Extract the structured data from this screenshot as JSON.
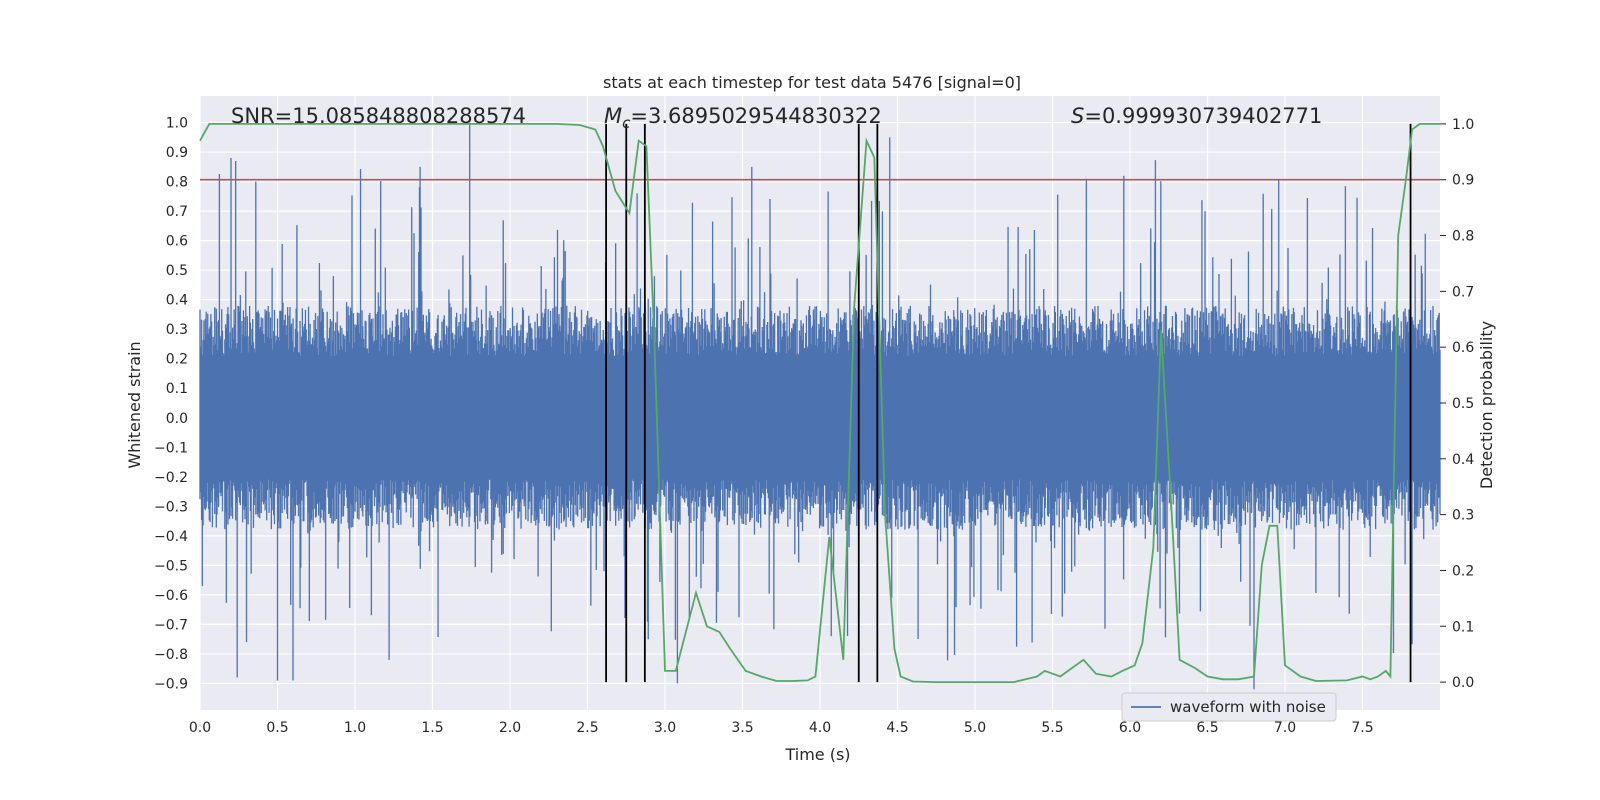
{
  "chart_data": {
    "type": "line",
    "title": "stats at each timestep for test data 5476 [signal=0]",
    "xlabel": "Time (s)",
    "ylabel_left": "Whitened strain",
    "ylabel_right": "Detection probability",
    "xlim": [
      0.0,
      8.0
    ],
    "ylim_left": [
      -0.99,
      1.09
    ],
    "ylim_right": [
      -0.05,
      1.05
    ],
    "x_ticks": [
      "0.0",
      "0.5",
      "1.0",
      "1.5",
      "2.0",
      "2.5",
      "3.0",
      "3.5",
      "4.0",
      "4.5",
      "5.0",
      "5.5",
      "6.0",
      "6.5",
      "7.0",
      "7.5"
    ],
    "y_left_ticks": [
      "1.0",
      "0.9",
      "0.8",
      "0.7",
      "0.6",
      "0.5",
      "0.4",
      "0.3",
      "0.2",
      "0.1",
      "0.0",
      "−0.1",
      "−0.2",
      "−0.3",
      "−0.4",
      "−0.5",
      "−0.6",
      "−0.7",
      "−0.8",
      "−0.9"
    ],
    "y_right_ticks": [
      "1.0",
      "0.9",
      "0.8",
      "0.7",
      "0.6",
      "0.5",
      "0.4",
      "0.3",
      "0.2",
      "0.1",
      "0.0"
    ],
    "annotations": {
      "snr": "SNR=15.085848808288574",
      "mc_symbol": "M",
      "mc_subscript": "c",
      "mc_value": "=3.6895029544830322",
      "s_symbol": "S",
      "s_value": "=0.999930739402771"
    },
    "threshold": {
      "value": 0.9,
      "axis": "right",
      "color": "#c44e52"
    },
    "vertical_markers_x": [
      2.62,
      2.75,
      2.87,
      4.25,
      4.37,
      7.81
    ],
    "grid": true,
    "background": "#eaeaf2",
    "legend": {
      "position": "lower-right",
      "entries": [
        "waveform with noise"
      ]
    },
    "series": [
      {
        "name": "waveform with noise",
        "axis": "left",
        "color": "#4c72b0",
        "kind": "noise",
        "samples": 1600,
        "envelope_abs": 0.38,
        "peak_max": 1.0,
        "peak_min": -0.93,
        "notable_peaks": [
          [
            0.2,
            0.88
          ],
          [
            0.23,
            0.87
          ],
          [
            0.36,
            0.8
          ],
          [
            1.42,
            0.85
          ],
          [
            1.74,
            1.0
          ],
          [
            2.82,
            0.76
          ],
          [
            3.56,
            0.85
          ],
          [
            4.45,
            0.95
          ],
          [
            5.96,
            0.82
          ],
          [
            0.24,
            -0.88
          ],
          [
            0.5,
            -0.89
          ],
          [
            0.6,
            -0.89
          ],
          [
            1.22,
            -0.82
          ],
          [
            3.08,
            -0.9
          ],
          [
            6.8,
            -0.92
          ]
        ]
      },
      {
        "axis": "right",
        "color": "#55a868",
        "x": [
          0.0,
          0.06,
          0.2,
          0.5,
          1.0,
          1.5,
          2.0,
          2.3,
          2.45,
          2.55,
          2.6,
          2.68,
          2.77,
          2.83,
          2.88,
          2.93,
          3.0,
          3.07,
          3.2,
          3.27,
          3.35,
          3.42,
          3.52,
          3.62,
          3.72,
          3.82,
          3.92,
          3.97,
          4.06,
          4.15,
          4.22,
          4.3,
          4.35,
          4.42,
          4.48,
          4.52,
          4.6,
          4.75,
          5.0,
          5.25,
          5.4,
          5.45,
          5.55,
          5.6,
          5.7,
          5.78,
          5.88,
          5.95,
          6.03,
          6.08,
          6.15,
          6.2,
          6.27,
          6.32,
          6.42,
          6.5,
          6.6,
          6.7,
          6.8,
          6.85,
          6.9,
          6.95,
          7.0,
          7.1,
          7.2,
          7.4,
          7.5,
          7.55,
          7.6,
          7.65,
          7.68,
          7.73,
          7.78,
          7.82,
          7.87,
          7.92,
          8.0
        ],
        "y": [
          0.97,
          1.0,
          1.0,
          1.0,
          1.0,
          1.0,
          1.0,
          1.0,
          0.998,
          0.99,
          0.96,
          0.88,
          0.84,
          0.97,
          0.96,
          0.62,
          0.02,
          0.02,
          0.16,
          0.1,
          0.09,
          0.06,
          0.02,
          0.01,
          0.002,
          0.002,
          0.003,
          0.01,
          0.26,
          0.04,
          0.67,
          0.97,
          0.94,
          0.3,
          0.06,
          0.01,
          0.001,
          0.0,
          0.0,
          0.0,
          0.01,
          0.02,
          0.01,
          0.02,
          0.04,
          0.015,
          0.01,
          0.02,
          0.03,
          0.07,
          0.24,
          0.63,
          0.3,
          0.04,
          0.025,
          0.01,
          0.005,
          0.005,
          0.01,
          0.21,
          0.28,
          0.28,
          0.03,
          0.01,
          0.002,
          0.003,
          0.01,
          0.005,
          0.01,
          0.02,
          0.01,
          0.8,
          0.9,
          0.99,
          1.0,
          1.0,
          1.0
        ]
      }
    ]
  }
}
